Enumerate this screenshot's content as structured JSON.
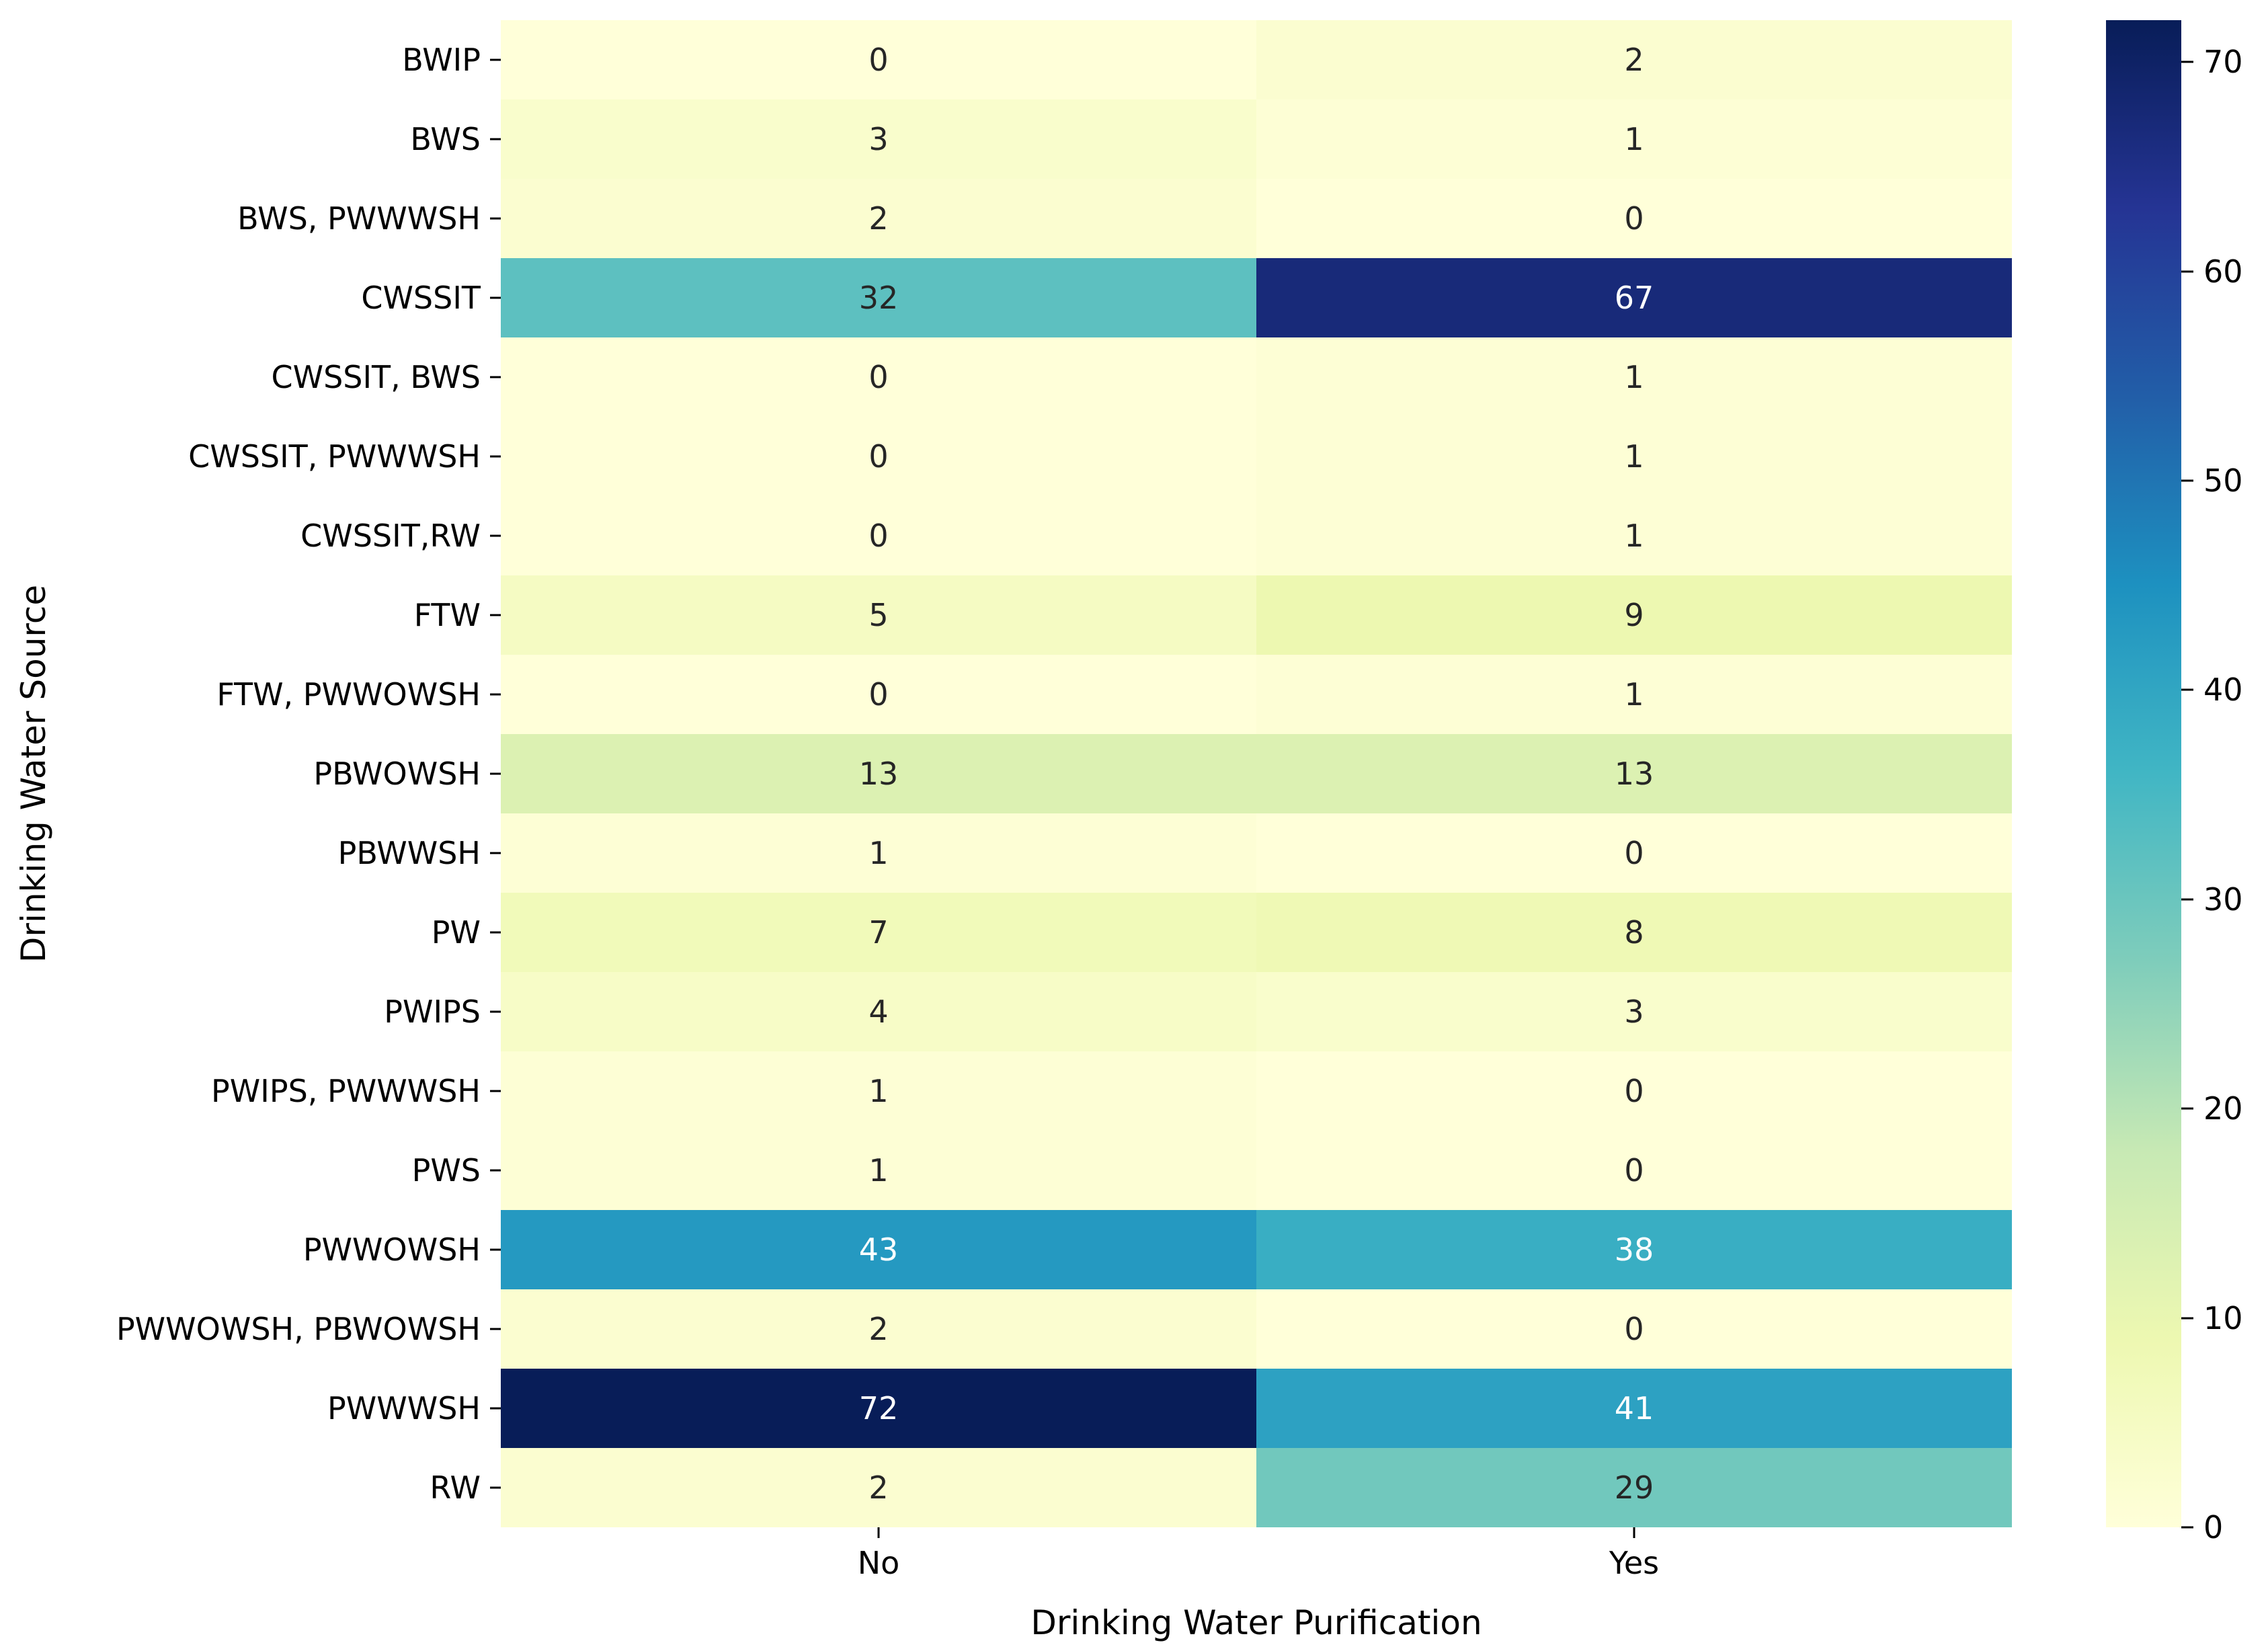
{
  "chart_data": {
    "type": "heatmap",
    "xlabel": "Drinking Water Purification",
    "ylabel": "Drinking Water Source",
    "columns": [
      "No",
      "Yes"
    ],
    "rows": [
      "BWIP",
      "BWS",
      "BWS, PWWWSH",
      "CWSSIT",
      "CWSSIT, BWS",
      "CWSSIT, PWWWSH",
      "CWSSIT,RW",
      "FTW",
      "FTW, PWWOWSH",
      "PBWOWSH",
      "PBWWSH",
      "PW",
      "PWIPS",
      "PWIPS, PWWWSH",
      "PWS",
      "PWWOWSH",
      "PWWOWSH, PBWOWSH",
      "PWWWSH",
      "RW"
    ],
    "values": [
      [
        0,
        2
      ],
      [
        3,
        1
      ],
      [
        2,
        0
      ],
      [
        32,
        67
      ],
      [
        0,
        1
      ],
      [
        0,
        1
      ],
      [
        0,
        1
      ],
      [
        5,
        9
      ],
      [
        0,
        1
      ],
      [
        13,
        13
      ],
      [
        1,
        0
      ],
      [
        7,
        8
      ],
      [
        4,
        3
      ],
      [
        1,
        0
      ],
      [
        1,
        0
      ],
      [
        43,
        38
      ],
      [
        2,
        0
      ],
      [
        72,
        41
      ],
      [
        2,
        29
      ]
    ],
    "vmin": 0,
    "vmax": 72,
    "colormap": {
      "name": "YlGnBu",
      "stops": [
        "#ffffd9",
        "#edf8b1",
        "#c7e9b4",
        "#7fcdbb",
        "#41b6c4",
        "#1d91c0",
        "#225ea8",
        "#253494",
        "#081d58"
      ]
    },
    "colorbar_ticks": [
      0,
      10,
      20,
      30,
      40,
      50,
      60,
      70
    ],
    "annotation_dark_color": "#262626",
    "annotation_light_color": "#ffffff",
    "grid": false,
    "legend_position": "colorbar-right"
  }
}
